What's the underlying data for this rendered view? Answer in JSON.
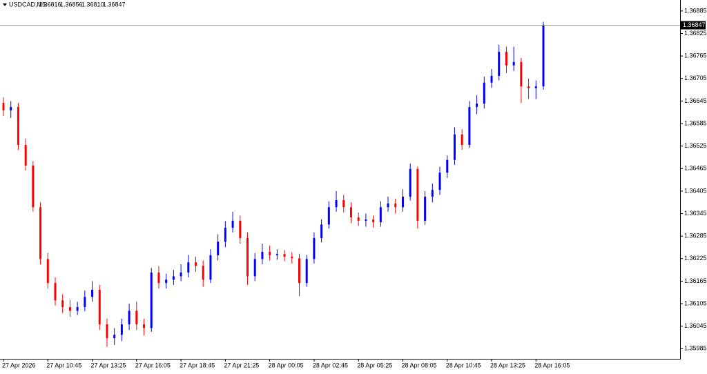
{
  "chart_data": {
    "type": "candlestick",
    "symbol": "USDCAD,M5",
    "quote": [
      1.36816,
      1.36856,
      {
        "value": 1.3681,
        "label": "1.36810"
      },
      1.36847
    ],
    "last_price": 1.36847,
    "up_color": "#0000ff",
    "down_color": "#ff0000",
    "grid": false,
    "ylim": [
      1.35958,
      1.36905
    ],
    "yticks": [
      1.36885,
      1.36825,
      1.36765,
      1.36705,
      1.36645,
      1.36585,
      1.36525,
      1.36465,
      1.36405,
      1.36345,
      1.36285,
      1.36225,
      1.36165,
      1.36105,
      1.36045,
      1.35985
    ],
    "categories": [
      "27 Apr 2026",
      null,
      null,
      null,
      null,
      null,
      "27 Apr 10:45",
      null,
      null,
      null,
      null,
      null,
      "27 Apr 13:25",
      null,
      null,
      null,
      null,
      null,
      "27 Apr 16:05",
      null,
      null,
      null,
      null,
      null,
      "27 Apr 18:45",
      null,
      null,
      null,
      null,
      null,
      "27 Apr 21:25",
      null,
      null,
      null,
      null,
      null,
      "28 Apr 00:05",
      null,
      null,
      null,
      null,
      null,
      "28 Apr 02:45",
      null,
      null,
      null,
      null,
      null,
      "28 Apr 05:25",
      null,
      null,
      null,
      null,
      null,
      "28 Apr 08:05",
      null,
      null,
      null,
      null,
      null,
      "28 Apr 10:45",
      null,
      null,
      null,
      null,
      null,
      "28 Apr 13:25",
      null,
      null,
      null,
      null,
      null,
      "28 Apr 16:05",
      null
    ],
    "open": [
      1.3664,
      1.3662,
      1.36629,
      1.36528,
      1.36473,
      1.36362,
      1.36224,
      1.3616,
      1.36114,
      1.36096,
      1.36086,
      1.36096,
      1.36123,
      1.36142,
      1.3605,
      1.36013,
      1.36022,
      1.3605,
      1.36086,
      1.3605,
      1.3604,
      1.36188,
      1.3616,
      1.36169,
      1.36178,
      1.36188,
      1.36215,
      1.36206,
      1.36169,
      1.36234,
      1.3627,
      1.36307,
      1.36326,
      1.3628,
      1.36178,
      1.36224,
      1.36243,
      1.36234,
      1.36237,
      1.3623,
      1.36226,
      1.3616,
      1.36224,
      1.3628,
      1.36316,
      1.36362,
      1.36381,
      1.36362,
      1.36335,
      1.36326,
      1.36329,
      1.36322,
      1.36362,
      1.36372,
      1.36362,
      1.3639,
      1.36464,
      1.36326,
      1.3639,
      1.36408,
      1.36454,
      1.36488,
      1.36556,
      1.36528,
      1.36629,
      1.36638,
      1.36694,
      1.36712,
      1.36776,
      1.3674,
      1.36749,
      1.36684,
      1.36679,
      1.36684
    ],
    "high": [
      1.36655,
      1.36645,
      1.3664,
      1.36545,
      1.36485,
      1.36375,
      1.3624,
      1.36175,
      1.3613,
      1.36115,
      1.3611,
      1.3614,
      1.36165,
      1.36155,
      1.36065,
      1.3604,
      1.36065,
      1.36105,
      1.3611,
      1.36065,
      1.362,
      1.36205,
      1.36185,
      1.36195,
      1.3621,
      1.36235,
      1.3623,
      1.3622,
      1.3625,
      1.3629,
      1.36325,
      1.3635,
      1.3634,
      1.36295,
      1.3624,
      1.36265,
      1.3626,
      1.3625,
      1.36248,
      1.36242,
      1.36238,
      1.36235,
      1.36295,
      1.3633,
      1.36378,
      1.36405,
      1.36395,
      1.36375,
      1.36348,
      1.36345,
      1.3634,
      1.36378,
      1.3639,
      1.36385,
      1.3641,
      1.36478,
      1.3647,
      1.36405,
      1.36425,
      1.3647,
      1.365,
      1.36575,
      1.3657,
      1.36645,
      1.3666,
      1.3671,
      1.3673,
      1.36795,
      1.3679,
      1.3679,
      1.3676,
      1.36705,
      1.367,
      1.36856
    ],
    "low": [
      1.36605,
      1.366,
      1.36515,
      1.3646,
      1.3635,
      1.3621,
      1.36145,
      1.361,
      1.3608,
      1.3607,
      1.36075,
      1.36085,
      1.3611,
      1.36035,
      1.3599,
      1.35995,
      1.36005,
      1.36035,
      1.36035,
      1.3602,
      1.3603,
      1.36145,
      1.36145,
      1.36155,
      1.36165,
      1.36175,
      1.3619,
      1.3615,
      1.3616,
      1.3622,
      1.36255,
      1.36295,
      1.36265,
      1.36155,
      1.36165,
      1.3621,
      1.3622,
      1.36222,
      1.36218,
      1.36212,
      1.36125,
      1.3615,
      1.36212,
      1.36268,
      1.36305,
      1.3635,
      1.36348,
      1.3632,
      1.36312,
      1.3631,
      1.36308,
      1.3631,
      1.3635,
      1.36345,
      1.3635,
      1.3638,
      1.36305,
      1.36315,
      1.36375,
      1.36395,
      1.3644,
      1.36475,
      1.36515,
      1.3652,
      1.3661,
      1.36625,
      1.3668,
      1.367,
      1.3672,
      1.36725,
      1.3664,
      1.3665,
      1.3665,
      1.36675
    ],
    "close": [
      1.3662,
      1.36629,
      1.36528,
      1.36473,
      1.36362,
      1.36224,
      1.3616,
      1.36114,
      1.36096,
      1.36086,
      1.36096,
      1.36123,
      1.36142,
      1.3605,
      1.36013,
      1.36022,
      1.3605,
      1.36086,
      1.3605,
      1.3604,
      1.36188,
      1.3616,
      1.36169,
      1.36178,
      1.36188,
      1.36215,
      1.36206,
      1.36169,
      1.36234,
      1.3627,
      1.36307,
      1.36326,
      1.3628,
      1.36178,
      1.36224,
      1.36243,
      1.36234,
      1.36237,
      1.3623,
      1.36226,
      1.3616,
      1.36224,
      1.3628,
      1.36316,
      1.36362,
      1.36381,
      1.36362,
      1.36335,
      1.36326,
      1.36329,
      1.36322,
      1.36362,
      1.36372,
      1.36362,
      1.3639,
      1.36464,
      1.36326,
      1.3639,
      1.36408,
      1.36454,
      1.36488,
      1.36556,
      1.36528,
      1.36629,
      1.36638,
      1.36694,
      1.36712,
      1.36776,
      1.3674,
      1.36749,
      1.36684,
      1.36679,
      1.36684,
      1.36847
    ]
  }
}
